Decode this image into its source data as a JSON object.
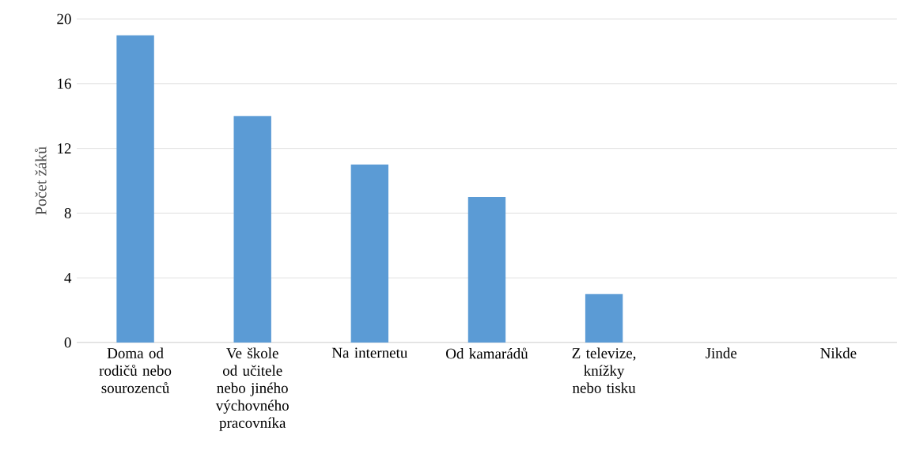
{
  "chart_data": {
    "type": "bar",
    "ylabel": "Počet žáků",
    "categories": [
      "Doma od rodičů nebo sourozenců",
      "Ve škole od učitele nebo jiného výchovného pracovníka",
      "Na internetu",
      "Od kamarádů",
      "Z televize, knížky nebo tisku",
      "Jinde",
      "Nikde"
    ],
    "values": [
      19,
      14,
      11,
      9,
      3,
      0,
      0
    ],
    "color": "#5b9bd5",
    "ylim": [
      0,
      20
    ],
    "yticks": [
      0,
      4,
      8,
      12,
      16,
      20
    ],
    "grid": "y"
  }
}
